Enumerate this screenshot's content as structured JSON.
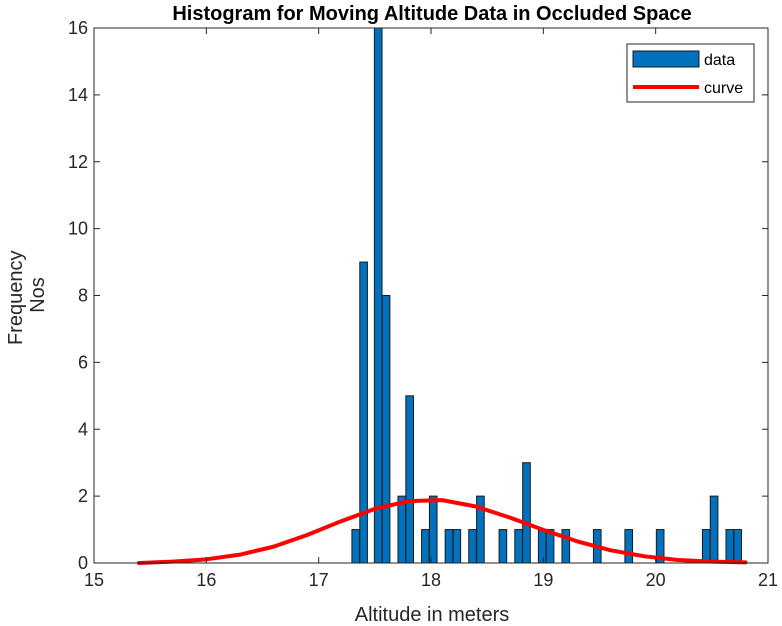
{
  "chart_data": {
    "type": "bar",
    "title": "Histogram for Moving Altitude Data in Occluded Space",
    "xlabel": "Altitude in meters",
    "ylabel_lines": [
      "Frequency",
      "Nos"
    ],
    "xlim": [
      15,
      21
    ],
    "ylim": [
      0,
      16
    ],
    "xticks": [
      "15",
      "16",
      "17",
      "18",
      "19",
      "20",
      "21"
    ],
    "yticks": [
      "0",
      "2",
      "4",
      "6",
      "8",
      "10",
      "12",
      "14",
      "16"
    ],
    "bin_width": 0.068,
    "grid": false,
    "legend_position": "top-right",
    "series": [
      {
        "name": "data",
        "kind": "bar",
        "color": "#0072BD",
        "edge_color": "#1a1a1a",
        "bins": [
          {
            "x": 17.33,
            "count": 1
          },
          {
            "x": 17.4,
            "count": 9
          },
          {
            "x": 17.53,
            "count": 16
          },
          {
            "x": 17.6,
            "count": 8
          },
          {
            "x": 17.74,
            "count": 2
          },
          {
            "x": 17.81,
            "count": 5
          },
          {
            "x": 17.95,
            "count": 1
          },
          {
            "x": 18.02,
            "count": 2
          },
          {
            "x": 18.16,
            "count": 1
          },
          {
            "x": 18.23,
            "count": 1
          },
          {
            "x": 18.37,
            "count": 1
          },
          {
            "x": 18.44,
            "count": 2
          },
          {
            "x": 18.64,
            "count": 1
          },
          {
            "x": 18.78,
            "count": 1
          },
          {
            "x": 18.85,
            "count": 3
          },
          {
            "x": 18.99,
            "count": 1
          },
          {
            "x": 19.06,
            "count": 1
          },
          {
            "x": 19.2,
            "count": 1
          },
          {
            "x": 19.48,
            "count": 1
          },
          {
            "x": 19.76,
            "count": 1
          },
          {
            "x": 20.04,
            "count": 1
          },
          {
            "x": 20.45,
            "count": 1
          },
          {
            "x": 20.52,
            "count": 2
          },
          {
            "x": 20.66,
            "count": 1
          },
          {
            "x": 20.73,
            "count": 1
          }
        ]
      },
      {
        "name": "curve",
        "kind": "line",
        "color": "#FF0000",
        "x": [
          15.4,
          15.7,
          16.0,
          16.3,
          16.6,
          16.9,
          17.2,
          17.5,
          17.8,
          18.1,
          18.4,
          18.7,
          19.0,
          19.3,
          19.6,
          19.9,
          20.2,
          20.5,
          20.8
        ],
        "y": [
          0.0,
          0.04,
          0.11,
          0.25,
          0.49,
          0.84,
          1.25,
          1.62,
          1.85,
          1.88,
          1.69,
          1.36,
          0.99,
          0.65,
          0.38,
          0.2,
          0.09,
          0.04,
          0.02
        ]
      }
    ]
  }
}
